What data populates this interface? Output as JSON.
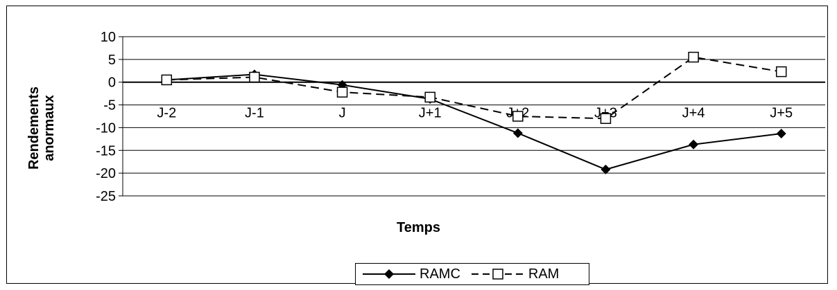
{
  "chart_data": {
    "type": "line",
    "title": "",
    "xlabel": "Temps",
    "ylabel_lines": [
      "Rendements",
      "anormaux"
    ],
    "categories": [
      "J-2",
      "J-1",
      "J",
      "J+1",
      "J+2",
      "J+3",
      "J+4",
      "J+5"
    ],
    "ylim": [
      -25,
      10
    ],
    "yticks": [
      10,
      5,
      0,
      -5,
      -10,
      -15,
      -20,
      -25
    ],
    "grid": true,
    "legend_position": "bottom",
    "series": [
      {
        "name": "RAMC",
        "color": "#000000",
        "marker": "diamond",
        "dash": "solid",
        "values": [
          0.5,
          1.7,
          -0.6,
          -3.7,
          -11.2,
          -19.2,
          -13.7,
          -11.3
        ]
      },
      {
        "name": "RAM",
        "color": "#000000",
        "marker": "square",
        "dash": "dashed",
        "values": [
          0.5,
          1.1,
          -2.2,
          -3.3,
          -7.5,
          -8.0,
          5.5,
          2.3
        ]
      }
    ]
  }
}
